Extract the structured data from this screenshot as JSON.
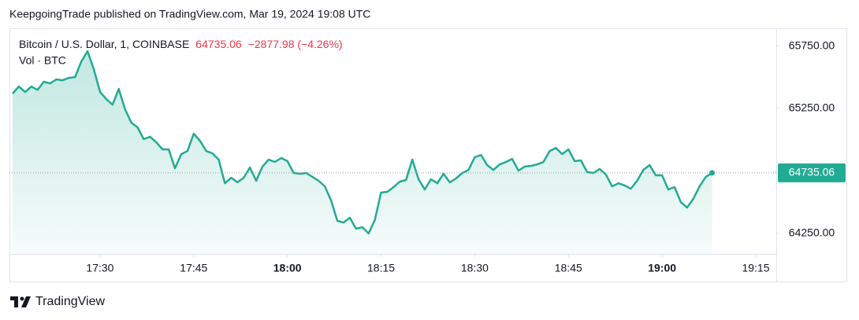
{
  "header": {
    "published": "KeepgoingTrade published on TradingView.com, Mar 19, 2024 19:08 UTC"
  },
  "legend": {
    "symbol": "Bitcoin / U.S. Dollar, 1, COINBASE",
    "change": "−2877.98 (−4.26%)",
    "volume": "Vol · BTC"
  },
  "footer": {
    "brand": "TradingView"
  },
  "chart_data": {
    "type": "area",
    "x": [
      "17:16",
      "17:17",
      "17:18",
      "17:19",
      "17:20",
      "17:21",
      "17:22",
      "17:23",
      "17:24",
      "17:25",
      "17:26",
      "17:27",
      "17:28",
      "17:29",
      "17:30",
      "17:31",
      "17:32",
      "17:33",
      "17:34",
      "17:35",
      "17:36",
      "17:37",
      "17:38",
      "17:39",
      "17:40",
      "17:41",
      "17:42",
      "17:43",
      "17:44",
      "17:45",
      "17:46",
      "17:47",
      "17:48",
      "17:49",
      "17:50",
      "17:51",
      "17:52",
      "17:53",
      "17:54",
      "17:55",
      "17:56",
      "17:57",
      "17:58",
      "17:59",
      "18:00",
      "18:01",
      "18:02",
      "18:03",
      "18:04",
      "18:05",
      "18:06",
      "18:07",
      "18:08",
      "18:09",
      "18:10",
      "18:11",
      "18:12",
      "18:13",
      "18:14",
      "18:15",
      "18:16",
      "18:17",
      "18:18",
      "18:19",
      "18:20",
      "18:21",
      "18:22",
      "18:23",
      "18:24",
      "18:25",
      "18:26",
      "18:27",
      "18:28",
      "18:29",
      "18:30",
      "18:31",
      "18:32",
      "18:33",
      "18:34",
      "18:35",
      "18:36",
      "18:37",
      "18:38",
      "18:39",
      "18:40",
      "18:41",
      "18:42",
      "18:43",
      "18:44",
      "18:45",
      "18:46",
      "18:47",
      "18:48",
      "18:49",
      "18:50",
      "18:51",
      "18:52",
      "18:53",
      "18:54",
      "18:55",
      "18:56",
      "18:57",
      "18:58",
      "18:59",
      "19:00",
      "19:01",
      "19:02",
      "19:03",
      "19:04",
      "19:05",
      "19:06",
      "19:07",
      "19:08"
    ],
    "series": [
      {
        "name": "Bitcoin / U.S. Dollar",
        "color": "#22ab94",
        "values": [
          65370,
          65426,
          65382,
          65426,
          65399,
          65464,
          65451,
          65483,
          65476,
          65495,
          65502,
          65627,
          65709,
          65565,
          65382,
          65325,
          65281,
          65407,
          65244,
          65137,
          65099,
          65005,
          65024,
          64980,
          64923,
          64923,
          64772,
          64885,
          64910,
          65049,
          64992,
          64910,
          64891,
          64841,
          64652,
          64696,
          64659,
          64696,
          64778,
          64671,
          64785,
          64841,
          64822,
          64854,
          64829,
          64734,
          64728,
          64734,
          64703,
          64671,
          64627,
          64514,
          64351,
          64338,
          64376,
          64288,
          64300,
          64250,
          64357,
          64577,
          64583,
          64621,
          64665,
          64678,
          64841,
          64684,
          64602,
          64684,
          64652,
          64728,
          64659,
          64690,
          64734,
          64759,
          64860,
          64879,
          64797,
          64759,
          64803,
          64822,
          64847,
          64753,
          64785,
          64791,
          64803,
          64822,
          64910,
          64935,
          64885,
          64923,
          64829,
          64835,
          64741,
          64734,
          64766,
          64722,
          64627,
          64652,
          64634,
          64608,
          64671,
          64759,
          64797,
          64715,
          64715,
          64602,
          64621,
          64501,
          64457,
          64527,
          64627,
          64703,
          64735.06
        ]
      }
    ],
    "xlim": [
      "17:15",
      "19:18"
    ],
    "xticks": [
      "17:30",
      "17:45",
      "18:00",
      "18:15",
      "18:30",
      "18:45",
      "19:00",
      "19:15"
    ],
    "ylim": [
      64086,
      65892
    ],
    "yticks": [
      {
        "value": 64250,
        "label": "64250.00"
      },
      {
        "value": 65250,
        "label": "65250.00"
      },
      {
        "value": 65750,
        "label": "65750.00"
      }
    ],
    "change_color": "#f23645"
  }
}
